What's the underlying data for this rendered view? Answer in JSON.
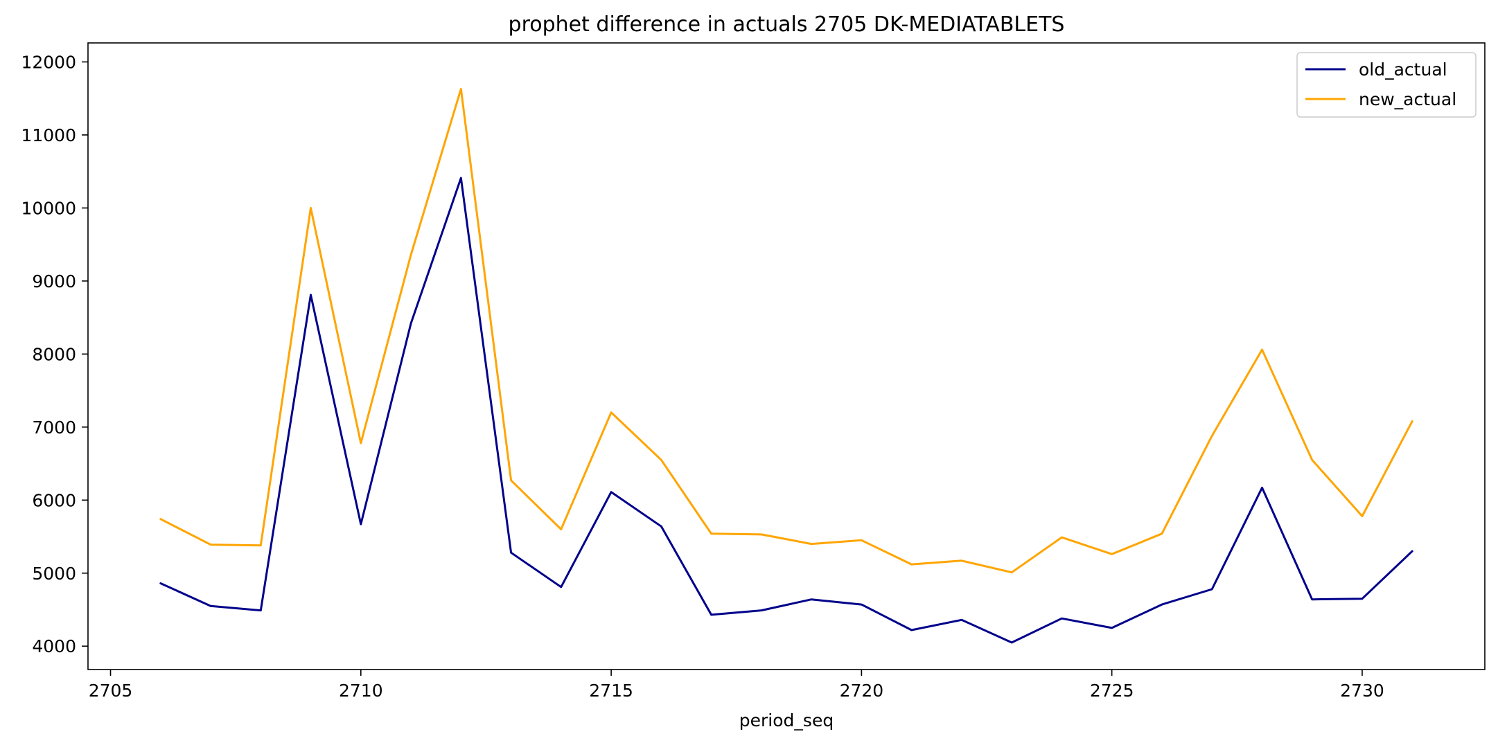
{
  "chart_data": {
    "type": "line",
    "title": "prophet difference in actuals 2705 DK-MEDIATABLETS",
    "xlabel": "period_seq",
    "ylabel": "",
    "xlim": [
      2704.55,
      2732.45
    ],
    "ylim": [
      3680,
      12260
    ],
    "xticks": [
      2705,
      2710,
      2715,
      2720,
      2725,
      2730
    ],
    "yticks": [
      4000,
      5000,
      6000,
      7000,
      8000,
      9000,
      10000,
      11000,
      12000
    ],
    "grid": false,
    "legend_position": "top-right",
    "x": [
      2706,
      2707,
      2708,
      2709,
      2710,
      2711,
      2712,
      2713,
      2714,
      2715,
      2716,
      2717,
      2718,
      2719,
      2720,
      2721,
      2722,
      2723,
      2724,
      2725,
      2726,
      2727,
      2728,
      2729,
      2730,
      2731
    ],
    "series": [
      {
        "name": "old_actual",
        "color": "#00008b",
        "values": [
          4860,
          4550,
          4490,
          8810,
          5670,
          8420,
          10410,
          5280,
          4810,
          6110,
          5640,
          4430,
          4490,
          4640,
          4570,
          4220,
          4360,
          4050,
          4380,
          4250,
          4570,
          4780,
          6170,
          4640,
          4650,
          5300
        ]
      },
      {
        "name": "new_actual",
        "color": "#ffa500",
        "values": [
          5740,
          5390,
          5380,
          10000,
          6780,
          9360,
          11630,
          6270,
          5600,
          7200,
          6550,
          5540,
          5530,
          5400,
          5450,
          5120,
          5170,
          5010,
          5490,
          5260,
          5540,
          6880,
          8060,
          6550,
          5780,
          7080
        ]
      }
    ]
  }
}
